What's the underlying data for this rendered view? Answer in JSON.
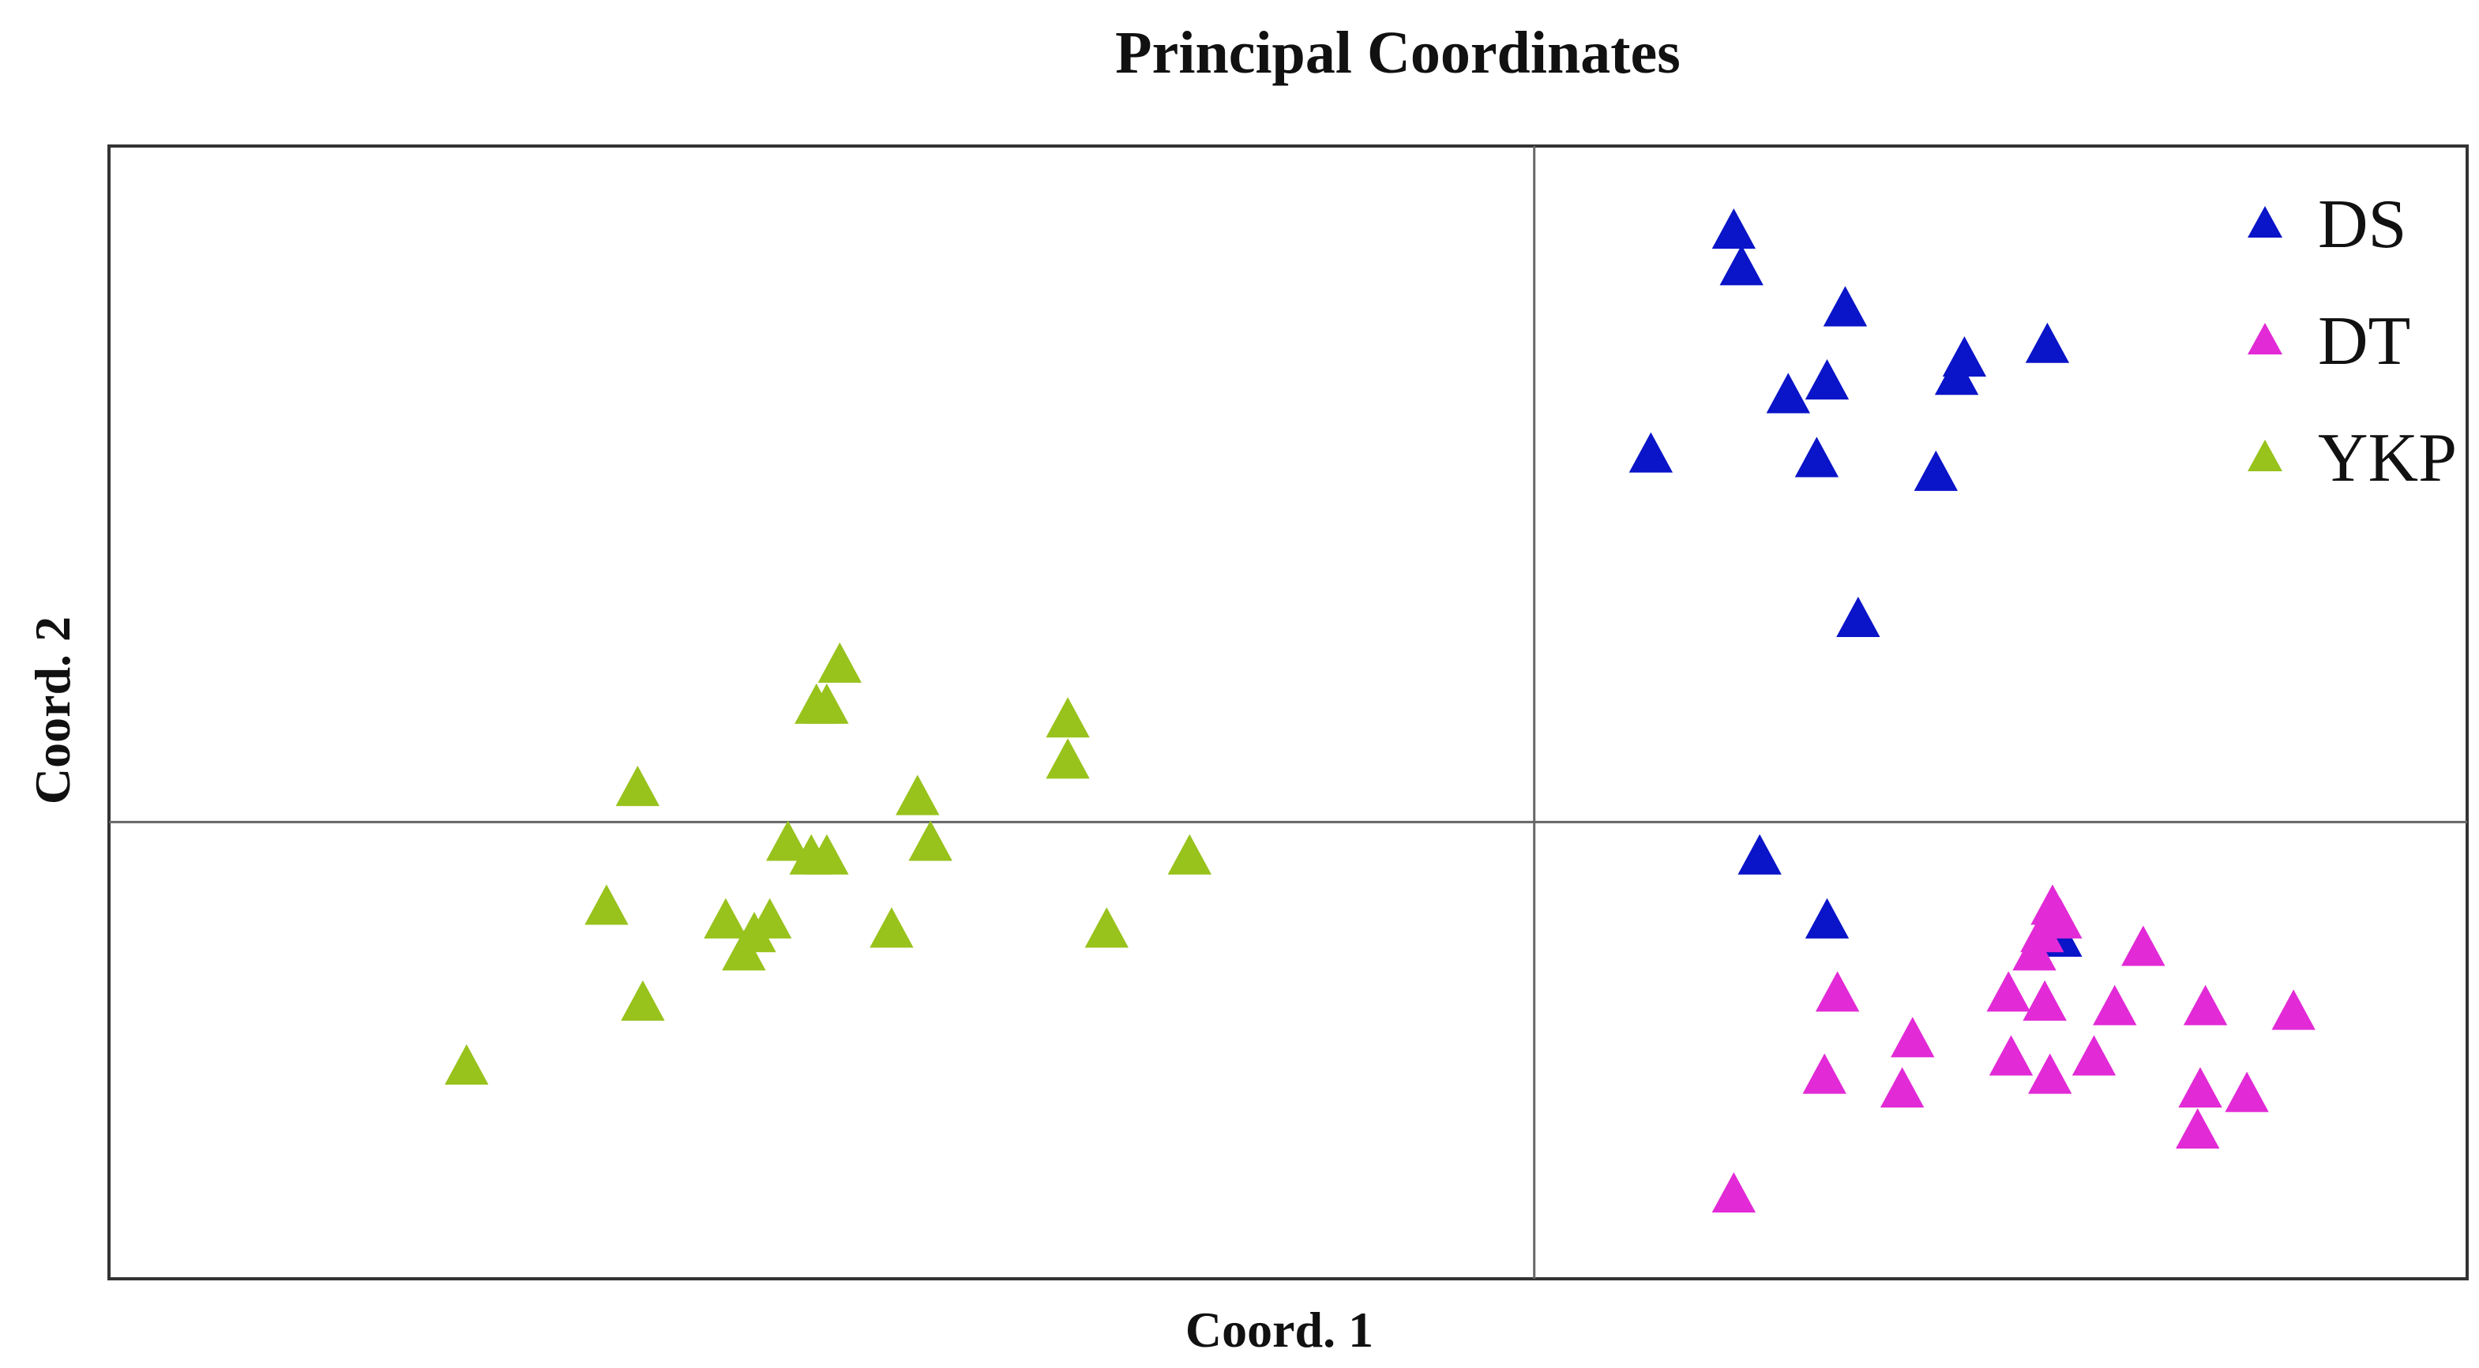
{
  "chart_data": {
    "type": "scatter",
    "title": "Principal Coordinates",
    "xlabel": "Coord. 1",
    "ylabel": "Coord. 2",
    "xlim": [
      -0.55,
      0.36
    ],
    "ylim": [
      -0.5,
      0.74
    ],
    "grid": false,
    "reference_lines": {
      "x": 0,
      "y": 0
    },
    "legend_position": "top-right",
    "marker": "triangle",
    "series": [
      {
        "name": "DS",
        "color": "#0a14c8",
        "points": [
          [
            0.077,
            0.645
          ],
          [
            0.08,
            0.605
          ],
          [
            0.12,
            0.56
          ],
          [
            0.166,
            0.505
          ],
          [
            0.163,
            0.485
          ],
          [
            0.098,
            0.465
          ],
          [
            0.113,
            0.48
          ],
          [
            0.045,
            0.4
          ],
          [
            0.109,
            0.395
          ],
          [
            0.155,
            0.38
          ],
          [
            0.125,
            0.22
          ],
          [
            0.087,
            -0.04
          ],
          [
            0.113,
            -0.11
          ],
          [
            0.198,
            0.52
          ],
          [
            0.203,
            -0.13
          ]
        ]
      },
      {
        "name": "DT",
        "color": "#e22ad6",
        "points": [
          [
            0.2,
            -0.095
          ],
          [
            0.203,
            -0.11
          ],
          [
            0.196,
            -0.125
          ],
          [
            0.193,
            -0.145
          ],
          [
            0.235,
            -0.14
          ],
          [
            0.117,
            -0.19
          ],
          [
            0.183,
            -0.19
          ],
          [
            0.197,
            -0.2
          ],
          [
            0.224,
            -0.205
          ],
          [
            0.259,
            -0.205
          ],
          [
            0.293,
            -0.21
          ],
          [
            0.146,
            -0.24
          ],
          [
            0.112,
            -0.28
          ],
          [
            0.142,
            -0.295
          ],
          [
            0.184,
            -0.26
          ],
          [
            0.199,
            -0.28
          ],
          [
            0.216,
            -0.26
          ],
          [
            0.257,
            -0.295
          ],
          [
            0.275,
            -0.3
          ],
          [
            0.256,
            -0.34
          ],
          [
            0.077,
            -0.41
          ]
        ]
      },
      {
        "name": "YKP",
        "color": "#98c21c",
        "points": [
          [
            -0.268,
            0.17
          ],
          [
            -0.277,
            0.125
          ],
          [
            -0.273,
            0.125
          ],
          [
            -0.18,
            0.11
          ],
          [
            -0.18,
            0.065
          ],
          [
            -0.346,
            0.035
          ],
          [
            -0.238,
            0.025
          ],
          [
            -0.288,
            -0.025
          ],
          [
            -0.279,
            -0.04
          ],
          [
            -0.273,
            -0.04
          ],
          [
            -0.233,
            -0.025
          ],
          [
            -0.133,
            -0.04
          ],
          [
            -0.358,
            -0.095
          ],
          [
            -0.312,
            -0.11
          ],
          [
            -0.295,
            -0.11
          ],
          [
            -0.301,
            -0.125
          ],
          [
            -0.248,
            -0.12
          ],
          [
            -0.165,
            -0.12
          ],
          [
            -0.305,
            -0.145
          ],
          [
            -0.344,
            -0.2
          ],
          [
            -0.412,
            -0.27
          ]
        ]
      }
    ]
  }
}
